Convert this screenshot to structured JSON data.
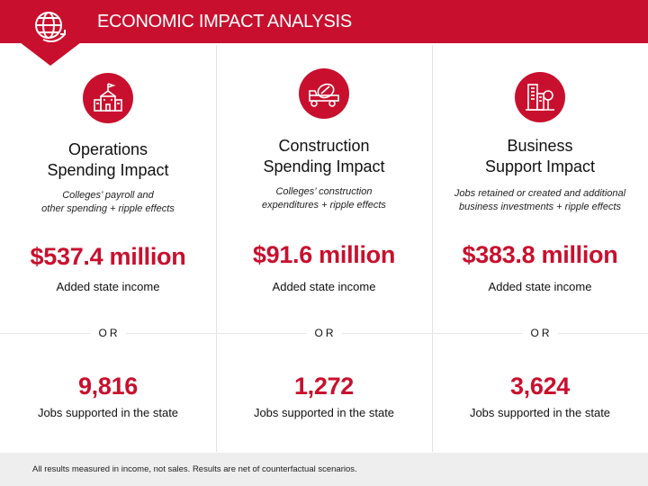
{
  "header": {
    "title": "ECONOMIC IMPACT ANALYSIS",
    "icon": "globe-arrow-icon"
  },
  "columns": [
    {
      "icon": "school-building-icon",
      "title_line1": "Operations",
      "title_line2": "Spending Impact",
      "desc_line1": "Colleges’ payroll and",
      "desc_line2": "other spending + ripple effects",
      "income_value": "$537.4 million",
      "income_label": "Added state income",
      "or_label": "OR",
      "jobs_value": "9,816",
      "jobs_label": "Jobs supported in the state"
    },
    {
      "icon": "cement-mixer-truck-icon",
      "title_line1": "Construction",
      "title_line2": "Spending Impact",
      "desc_line1": "Colleges’ construction",
      "desc_line2": "expenditures + ripple effects",
      "income_value": "$91.6 million",
      "income_label": "Added state income",
      "or_label": "OR",
      "jobs_value": "1,272",
      "jobs_label": "Jobs supported in the state"
    },
    {
      "icon": "office-buildings-tree-icon",
      "title_line1": "Business",
      "title_line2": "Support Impact",
      "desc_line1": "Jobs retained or created and additional",
      "desc_line2": "business investments + ripple effects",
      "income_value": "$383.8 million",
      "income_label": "Added state income",
      "or_label": "OR",
      "jobs_value": "3,624",
      "jobs_label": "Jobs supported in the state"
    }
  ],
  "footer": {
    "note": "All results measured in income, not sales. Results are net of counterfactual scenarios."
  },
  "colors": {
    "accent": "#c8102e",
    "footer_bg": "#eeeeee"
  }
}
